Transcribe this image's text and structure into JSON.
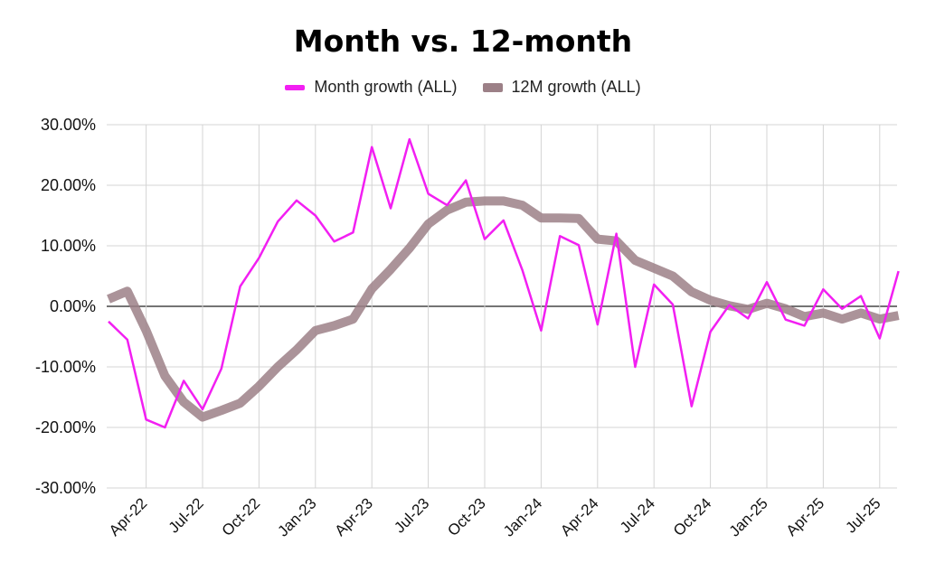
{
  "chart_data": {
    "type": "line",
    "title": "Month vs. 12-month",
    "xlabel": "",
    "ylabel": "",
    "ylim": [
      -30,
      30
    ],
    "yticks": [
      -30,
      -20,
      -10,
      0,
      10,
      20,
      30
    ],
    "ytick_labels": [
      "-30.00%",
      "-20.00%",
      "-10.00%",
      "0.00%",
      "10.00%",
      "20.00%",
      "30.00%"
    ],
    "x": [
      "Feb-22",
      "Mar-22",
      "Apr-22",
      "May-22",
      "Jun-22",
      "Jul-22",
      "Aug-22",
      "Sep-22",
      "Oct-22",
      "Nov-22",
      "Dec-22",
      "Jan-23",
      "Feb-23",
      "Mar-23",
      "Apr-23",
      "May-23",
      "Jun-23",
      "Jul-23",
      "Aug-23",
      "Sep-23",
      "Oct-23",
      "Nov-23",
      "Dec-23",
      "Jan-24",
      "Feb-24",
      "Mar-24",
      "Apr-24",
      "May-24",
      "Jun-24",
      "Jul-24",
      "Aug-24",
      "Sep-24",
      "Oct-24",
      "Nov-24",
      "Dec-24",
      "Jan-25",
      "Feb-25",
      "Mar-25",
      "Apr-25",
      "May-25",
      "Jun-25",
      "Jul-25",
      "Aug-25"
    ],
    "xtick_labels": [
      "Apr-22",
      "Jul-22",
      "Oct-22",
      "Jan-23",
      "Apr-23",
      "Jul-23",
      "Oct-23",
      "Jan-24",
      "Apr-24",
      "Jul-24",
      "Oct-24",
      "Jan-25",
      "Apr-25",
      "Jul-25"
    ],
    "series": [
      {
        "name": "Month growth (ALL)",
        "color": "#f21ff2",
        "values": [
          -2.5,
          -5.5,
          -18.7,
          -20,
          -12.3,
          -17,
          -10.3,
          3.3,
          8,
          14,
          17.5,
          15,
          10.7,
          12.2,
          26.3,
          16.2,
          27.6,
          18.6,
          16.7,
          20.8,
          11.1,
          14.2,
          6,
          -4,
          11.6,
          10.1,
          -3,
          12,
          -10,
          3.6,
          0.3,
          -16.5,
          -4.2,
          0.2,
          -2,
          4,
          -2.2,
          -3.2,
          2.8,
          -0.4,
          1.7,
          -5.3,
          5.8
        ]
      },
      {
        "name": "12M growth (ALL)",
        "color": "#9c8087",
        "values": [
          1.2,
          2.5,
          -4,
          -11.5,
          -15.8,
          -18.3,
          -17.2,
          -16,
          -13.2,
          -10,
          -7.2,
          -4,
          -3.2,
          -2.1,
          2.9,
          6.1,
          9.6,
          13.6,
          15.9,
          17.2,
          17.4,
          17.4,
          16.7,
          14.6,
          14.6,
          14.5,
          11.1,
          10.8,
          7.6,
          6.3,
          5,
          2.4,
          1,
          0.1,
          -0.5,
          0.5,
          -0.4,
          -1.7,
          -1.1,
          -2.1,
          -1.1,
          -2.1,
          -1.5
        ]
      }
    ],
    "legend": "top-center",
    "grid": true
  }
}
